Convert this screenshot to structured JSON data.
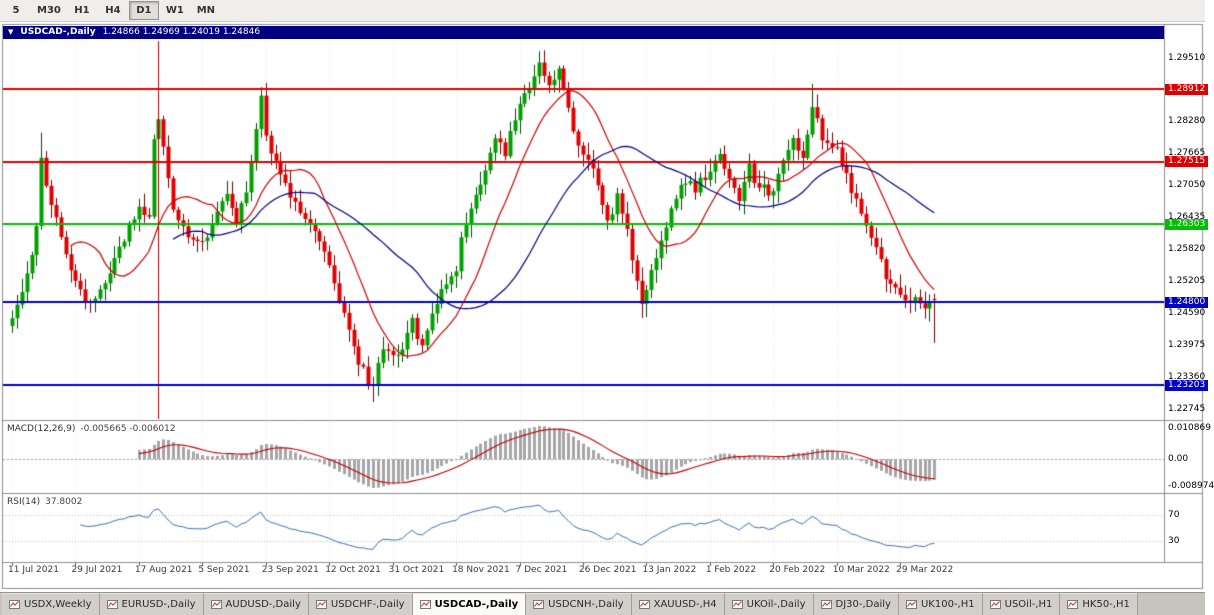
{
  "toolbar": {
    "periods": [
      "5",
      "M30",
      "H1",
      "H4",
      "D1",
      "W1",
      "MN"
    ],
    "active": "D1"
  },
  "chart_header": {
    "symbol": "USDCAD-,Daily",
    "quotes": "1.24866 1.24969 1.24019 1.24846"
  },
  "price_axis": [
    {
      "text": "1.29510",
      "value": 1.2951
    },
    {
      "text": "1.28912",
      "value": 1.28912,
      "bg": "#DE0000"
    },
    {
      "text": "1.28280",
      "value": 1.2828
    },
    {
      "text": "1.27665",
      "value": 1.27665
    },
    {
      "text": "1.27515",
      "value": 1.27515,
      "bg": "#DE0000"
    },
    {
      "text": "1.27050",
      "value": 1.2705
    },
    {
      "text": "1.26435",
      "value": 1.26435
    },
    {
      "text": "1.26303",
      "value": 1.26303,
      "bg": "#00C000"
    },
    {
      "text": "1.25820",
      "value": 1.2582
    },
    {
      "text": "1.25205",
      "value": 1.25205
    },
    {
      "text": "1.24800",
      "value": 1.248,
      "bg": "#0000C8"
    },
    {
      "text": "1.24590",
      "value": 1.2459
    },
    {
      "text": "1.23975",
      "value": 1.23975
    },
    {
      "text": "1.23360",
      "value": 1.2336
    },
    {
      "text": "1.23203",
      "value": 1.23203,
      "bg": "#0000C8"
    },
    {
      "text": "1.22745",
      "value": 1.22745
    }
  ],
  "indicator_labels": {
    "macd_name": "MACD(12,26,9)",
    "macd_values": "-0.005665 -0.006012",
    "macd_axis_top": "0.010869",
    "macd_axis_zero": "0.00",
    "macd_axis_bottom": "-0.008974",
    "rsi_name": "RSI(14)",
    "rsi_value": "37.8002",
    "rsi_axis_top": "70",
    "rsi_axis_bottom": "30"
  },
  "tabs": [
    {
      "label": "USDX,Weekly"
    },
    {
      "label": "EURUSD-,Daily"
    },
    {
      "label": "AUDUSD-,Daily"
    },
    {
      "label": "USDCHF-,Daily"
    },
    {
      "label": "USDCAD-,Daily",
      "active": true
    },
    {
      "label": "USDCNH-,Daily"
    },
    {
      "label": "XAUUSD-,H4"
    },
    {
      "label": "UKOil-,Daily"
    },
    {
      "label": "DJ30-,Daily"
    },
    {
      "label": "UK100-,H1"
    },
    {
      "label": "USOil-,H1"
    },
    {
      "label": "HK50-,H1"
    }
  ],
  "chart_data": {
    "type": "candlestick",
    "title": "USDCAD-,Daily",
    "symbol": "USDCAD",
    "timeframe": "D1",
    "ohlc_current": {
      "open": 1.24866,
      "high": 1.24969,
      "low": 1.24019,
      "close": 1.24846
    },
    "bar_count": 190,
    "bars_per_x_tick": 13,
    "x_tick_labels": [
      "11 Jul 2021",
      "29 Jul 2021",
      "17 Aug 2021",
      "5 Sep 2021",
      "23 Sep 2021",
      "12 Oct 2021",
      "31 Oct 2021",
      "18 Nov 2021",
      "7 Dec 2021",
      "26 Dec 2021",
      "13 Jan 2022",
      "1 Feb 2022",
      "20 Feb 2022",
      "10 Mar 2022",
      "29 Mar 2022"
    ],
    "y_axis": {
      "top": 1.29857,
      "bottom": 1.22572,
      "tick_step": 0.00615
    },
    "close_anchors": [
      [
        0,
        1.2455
      ],
      [
        3,
        1.253
      ],
      [
        5,
        1.2625
      ],
      [
        6,
        1.2755
      ],
      [
        8,
        1.267
      ],
      [
        11,
        1.2565
      ],
      [
        13,
        1.252
      ],
      [
        16,
        1.2475
      ],
      [
        20,
        1.254
      ],
      [
        24,
        1.2625
      ],
      [
        26,
        1.266
      ],
      [
        28,
        1.264
      ],
      [
        29,
        1.279
      ],
      [
        30,
        1.2825
      ],
      [
        31,
        1.278
      ],
      [
        33,
        1.265
      ],
      [
        36,
        1.2605
      ],
      [
        39,
        1.2595
      ],
      [
        42,
        1.265
      ],
      [
        44,
        1.269
      ],
      [
        46,
        1.2635
      ],
      [
        48,
        1.27
      ],
      [
        50,
        1.281
      ],
      [
        51,
        1.287
      ],
      [
        52,
        1.281
      ],
      [
        54,
        1.2745
      ],
      [
        57,
        1.268
      ],
      [
        60,
        1.264
      ],
      [
        63,
        1.259
      ],
      [
        65,
        1.256
      ],
      [
        67,
        1.248
      ],
      [
        69,
        1.242
      ],
      [
        71,
        1.237
      ],
      [
        73,
        1.233
      ],
      [
        74,
        1.232
      ],
      [
        76,
        1.2385
      ],
      [
        78,
        1.237
      ],
      [
        80,
        1.2395
      ],
      [
        82,
        1.244
      ],
      [
        84,
        1.24
      ],
      [
        86,
        1.245
      ],
      [
        88,
        1.25
      ],
      [
        91,
        1.255
      ],
      [
        93,
        1.264
      ],
      [
        95,
        1.268
      ],
      [
        97,
        1.274
      ],
      [
        99,
        1.28
      ],
      [
        101,
        1.277
      ],
      [
        103,
        1.284
      ],
      [
        104,
        1.286
      ],
      [
        106,
        1.29
      ],
      [
        108,
        1.2945
      ],
      [
        110,
        1.289
      ],
      [
        112,
        1.2925
      ],
      [
        114,
        1.285
      ],
      [
        116,
        1.279
      ],
      [
        118,
        1.276
      ],
      [
        120,
        1.27
      ],
      [
        122,
        1.264
      ],
      [
        124,
        1.268
      ],
      [
        126,
        1.262
      ],
      [
        128,
        1.252
      ],
      [
        129,
        1.248
      ],
      [
        130,
        1.251
      ],
      [
        132,
        1.257
      ],
      [
        134,
        1.263
      ],
      [
        136,
        1.268
      ],
      [
        138,
        1.272
      ],
      [
        140,
        1.27
      ],
      [
        143,
        1.274
      ],
      [
        145,
        1.277
      ],
      [
        147,
        1.272
      ],
      [
        149,
        1.268
      ],
      [
        151,
        1.274
      ],
      [
        153,
        1.27
      ],
      [
        156,
        1.269
      ],
      [
        158,
        1.275
      ],
      [
        160,
        1.279
      ],
      [
        162,
        1.276
      ],
      [
        164,
        1.285
      ],
      [
        166,
        1.28
      ],
      [
        169,
        1.278
      ],
      [
        171,
        1.272
      ],
      [
        173,
        1.268
      ],
      [
        175,
        1.263
      ],
      [
        177,
        1.259
      ],
      [
        179,
        1.253
      ],
      [
        181,
        1.25
      ],
      [
        183,
        1.248
      ],
      [
        185,
        1.2495
      ],
      [
        187,
        1.2475
      ],
      [
        189,
        1.24846
      ]
    ],
    "spike_highs": [
      [
        6,
        1.2807
      ],
      [
        30,
        1.2949
      ],
      [
        51,
        1.2895
      ],
      [
        108,
        1.2964
      ],
      [
        164,
        1.2901
      ]
    ],
    "spike_lows": [
      [
        74,
        1.2288
      ],
      [
        129,
        1.245
      ]
    ],
    "horizontal_lines": [
      {
        "price": 1.28912,
        "color": "#DE0000"
      },
      {
        "price": 1.27515,
        "color": "#DE0000"
      },
      {
        "price": 1.26303,
        "color": "#00C000"
      },
      {
        "price": 1.248,
        "color": "#0000C8"
      },
      {
        "price": 1.23203,
        "color": "#0000C8"
      }
    ],
    "vertical_lines": [
      {
        "bar": 30,
        "color": "#C00000"
      }
    ],
    "moving_averages": [
      {
        "period": 13,
        "color": "#D00000"
      },
      {
        "period": 34,
        "color": "#000080"
      }
    ],
    "indicators": [
      {
        "name": "MACD",
        "params": [
          12,
          26,
          9
        ],
        "current_main": -0.005665,
        "current_signal": -0.006012,
        "axis_max": 0.010869,
        "axis_min": -0.008974,
        "histogram_color": "#A6A6A6",
        "signal_color": "#C00000"
      },
      {
        "name": "RSI",
        "params": [
          14
        ],
        "current": 37.8002,
        "levels": [
          70,
          30
        ],
        "line_color": "#3B6FB5"
      }
    ],
    "candle_colors": {
      "up": "#00A000",
      "up_border": "#004D00",
      "down": "#E00000",
      "down_border": "#7A0000"
    }
  }
}
